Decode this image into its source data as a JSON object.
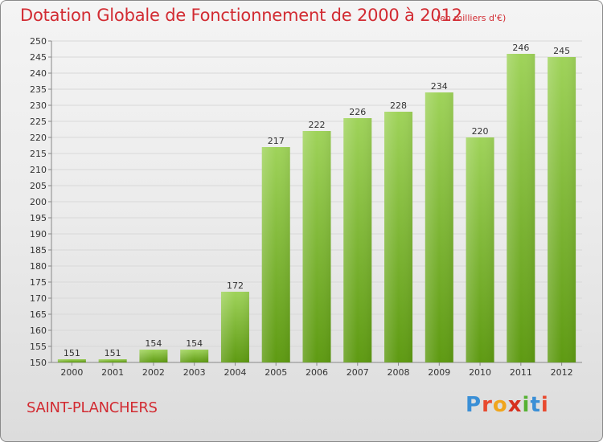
{
  "header": {
    "title": "Dotation Globale de Fonctionnement de 2000 à 2012",
    "unit": "(en milliers d'€)"
  },
  "footer": {
    "commune": "SAINT-PLANCHERS",
    "logo": [
      "P",
      "r",
      "o",
      "x",
      "i",
      "t",
      "i"
    ]
  },
  "colors": {
    "bar_top": "#9fd35a",
    "bar_bottom": "#5e9a12",
    "grid": "#d8d8d8",
    "title": "#d22b32"
  },
  "chart_data": {
    "type": "bar",
    "title": "Dotation Globale de Fonctionnement de 2000 à 2012",
    "subtitle": "(en milliers d'€)",
    "xlabel": "",
    "ylabel": "",
    "categories": [
      "2000",
      "2001",
      "2002",
      "2003",
      "2004",
      "2005",
      "2006",
      "2007",
      "2008",
      "2009",
      "2010",
      "2011",
      "2012"
    ],
    "values": [
      151,
      151,
      154,
      154,
      172,
      217,
      222,
      226,
      228,
      234,
      220,
      246,
      245
    ],
    "data_labels": [
      "151",
      "151",
      "154",
      "154",
      "172",
      "217",
      "222",
      "226",
      "228",
      "234",
      "220",
      "246",
      "245"
    ],
    "ylim": [
      150,
      250
    ],
    "yticks": [
      "150",
      "155",
      "160",
      "165",
      "170",
      "175",
      "180",
      "185",
      "190",
      "195",
      "200",
      "205",
      "210",
      "215",
      "220",
      "225",
      "230",
      "235",
      "240",
      "245",
      "250"
    ],
    "grid": true,
    "legend": "none"
  }
}
